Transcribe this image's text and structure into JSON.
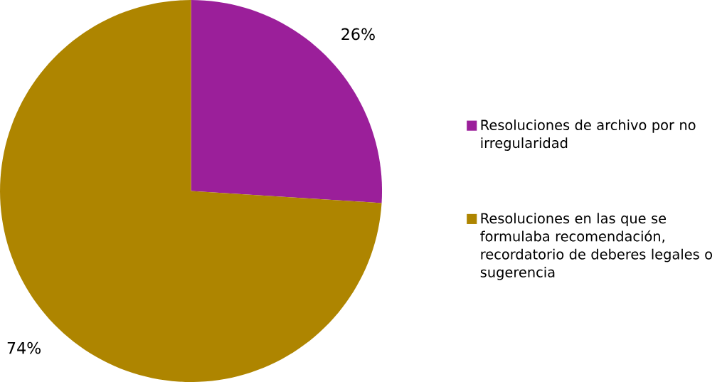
{
  "chart_data": {
    "type": "pie",
    "categories": [
      "Resoluciones de archivo por no irregularidad",
      "Resoluciones en las que se formulaba recomendación, recordatorio de deberes legales o sugerencia"
    ],
    "values": [
      26,
      74
    ],
    "value_labels": [
      "26%",
      "74%"
    ],
    "colors": [
      "#9b1f9a",
      "#ae8500"
    ],
    "legend": "right"
  }
}
